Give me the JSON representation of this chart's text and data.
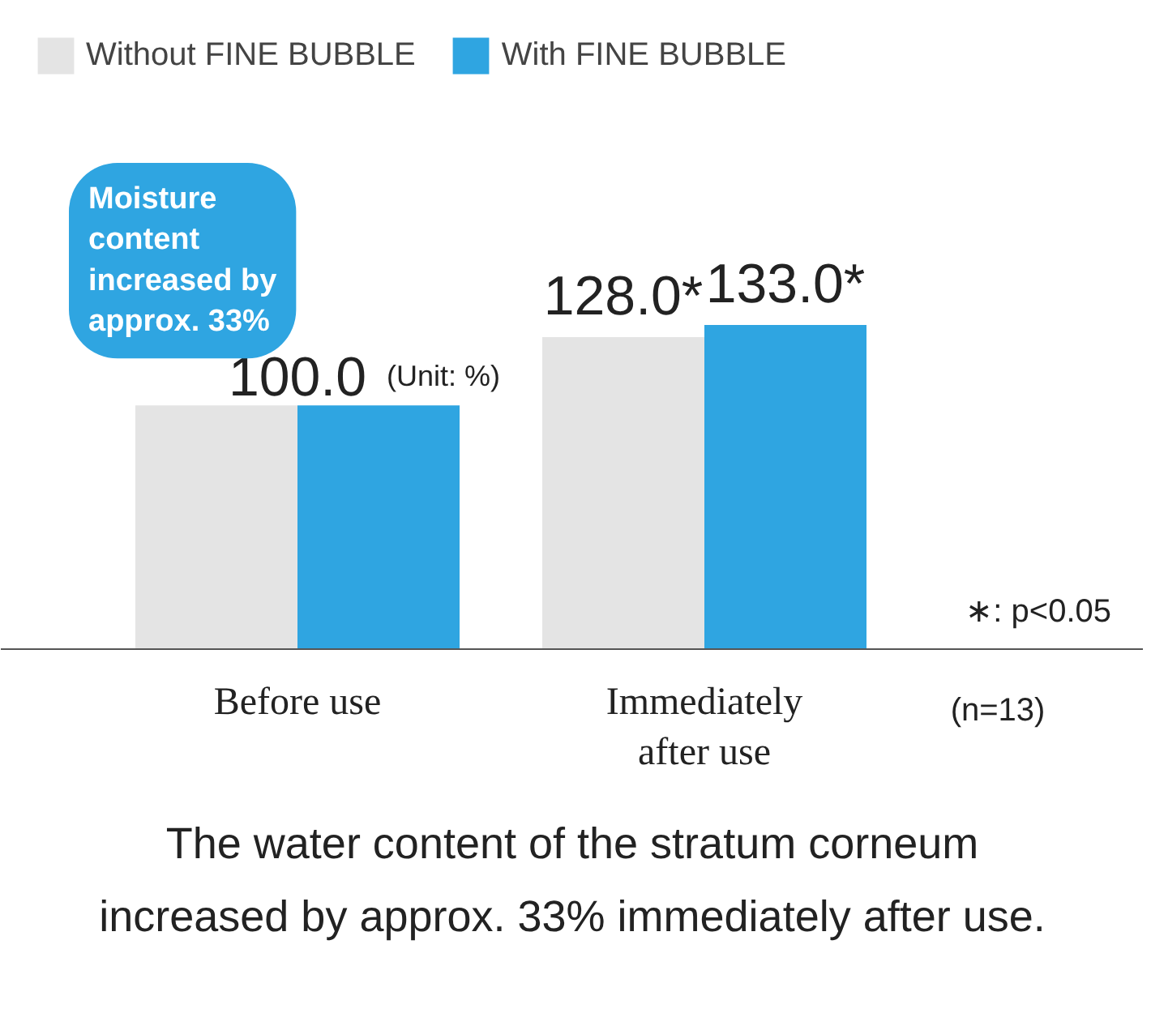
{
  "chart_data": {
    "type": "bar",
    "categories": [
      "Before use",
      "Immediately\nafter use"
    ],
    "series": [
      {
        "name": "Without FINE BUBBLE",
        "color": "#e4e4e4",
        "values": [
          100.0,
          128.0
        ],
        "value_labels": [
          "100.0",
          "128.0*"
        ]
      },
      {
        "name": "With FINE BUBBLE",
        "color": "#2fa5e1",
        "values": [
          100.0,
          133.0
        ],
        "value_labels": [
          null,
          "133.0*"
        ]
      }
    ],
    "legend": "top left",
    "annotations": [
      "Moisture content increased by approx. 33%",
      "(Unit: %)",
      "∗: p<0.05",
      "(n=13)",
      "The water content of the stratum corneum\nincreased by approx. 33% immediately after use."
    ]
  }
}
